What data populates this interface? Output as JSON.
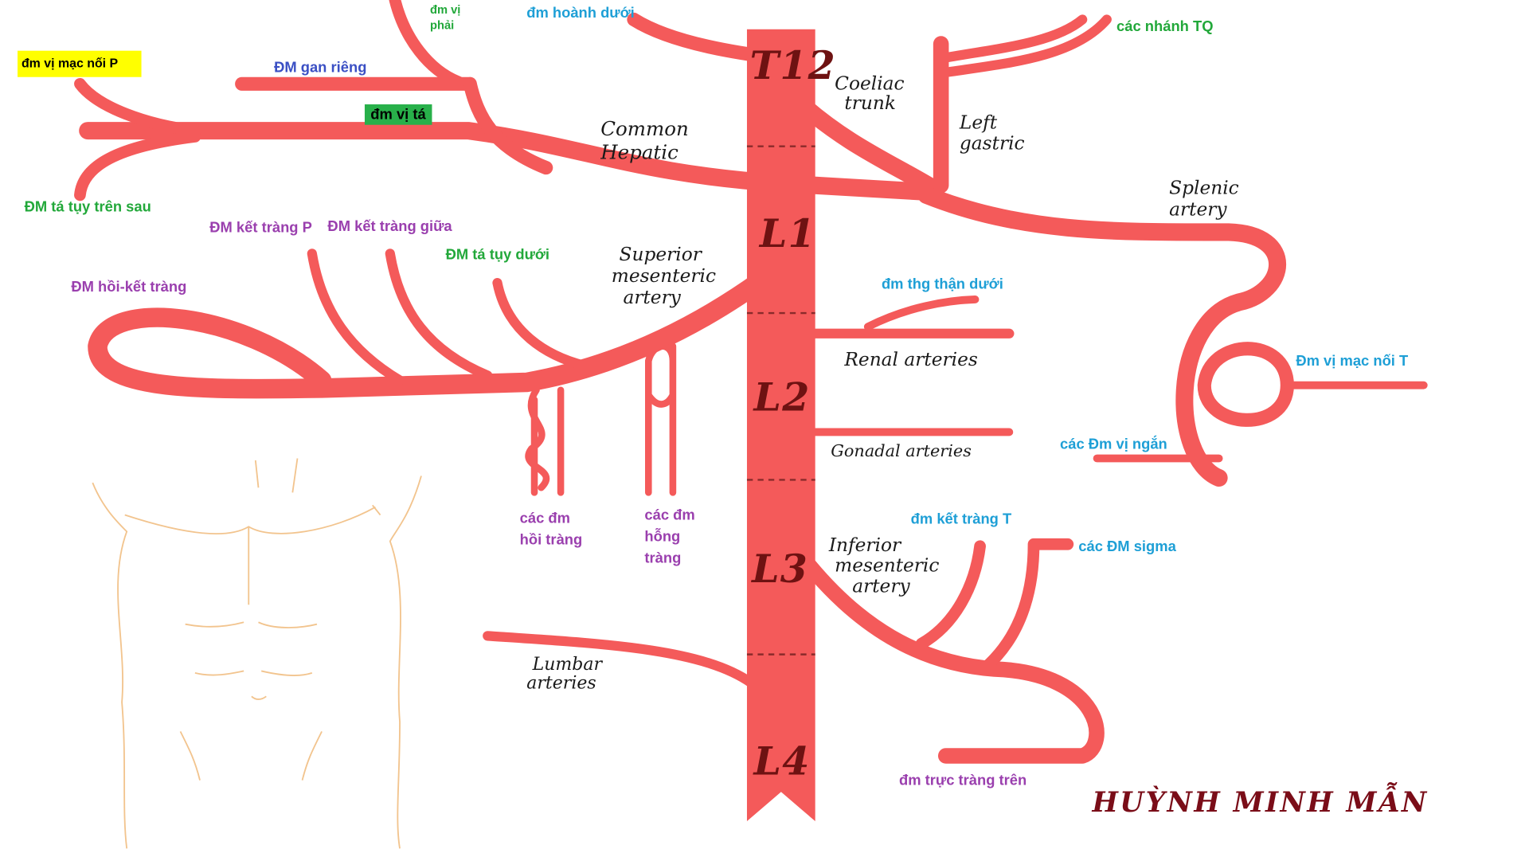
{
  "colors": {
    "artery": "#f45a5a",
    "vertebra_text": "#6e1212",
    "signature": "#7a0d18",
    "skin_outline": "#f2c48e"
  },
  "vertebrae": [
    "T12",
    "L1",
    "L2",
    "L3",
    "L4"
  ],
  "labels_vi": {
    "dm_vi_phai": [
      "đm vị",
      "phải"
    ],
    "dm_hoanh_duoi": "đm hoành dưới",
    "cac_nhanh_tq": "các nhánh TQ",
    "dm_vi_mac_noi_p": "đm vị mạc nối P",
    "dm_gan_rieng": "ĐM gan riêng",
    "dm_vi_ta": "đm vị tá",
    "dm_ta_tuy_tren_sau": "ĐM tá tụy trên sau",
    "dm_ket_trang_p": "ĐM kết tràng P",
    "dm_ket_trang_giua": "ĐM kết tràng giữa",
    "dm_ta_tuy_duoi": "ĐM tá tụy dưới",
    "dm_hoi_ket_trang": "ĐM hồi-kết tràng",
    "dm_thg_than_duoi": "đm thg thận dưới",
    "dm_vi_mac_noi_t": "Đm vị mạc nối T",
    "cac_dm_vi_ngan": "các Đm vị ngắn",
    "cac_dm_hoi_trang": [
      "các đm",
      "hồi tràng"
    ],
    "cac_dm_hong_trang": [
      "các đm",
      "hỗng",
      "tràng"
    ],
    "dm_ket_trang_t": "đm kết tràng T",
    "cac_dm_sigma": "các ĐM sigma",
    "dm_truc_trang_tren": "đm trực tràng trên"
  },
  "labels_en": {
    "coeliac_trunk": [
      "Coeliac",
      "trunk"
    ],
    "left_gastric": [
      "Left",
      "gastric"
    ],
    "common_hepatic": [
      "Common",
      "Hepatic"
    ],
    "splenic_artery": [
      "Splenic",
      "artery"
    ],
    "superior_mesenteric_artery": [
      "Superior",
      "mesenteric",
      "artery"
    ],
    "renal_arteries": "Renal arteries",
    "gonadal_arteries": "Gonadal arteries",
    "inferior_mesenteric_artery": [
      "Inferior",
      "mesenteric",
      "artery"
    ],
    "lumbar_arteries": [
      "Lumbar",
      "arteries"
    ]
  },
  "signature": "HUỲNH MINH MẪN"
}
